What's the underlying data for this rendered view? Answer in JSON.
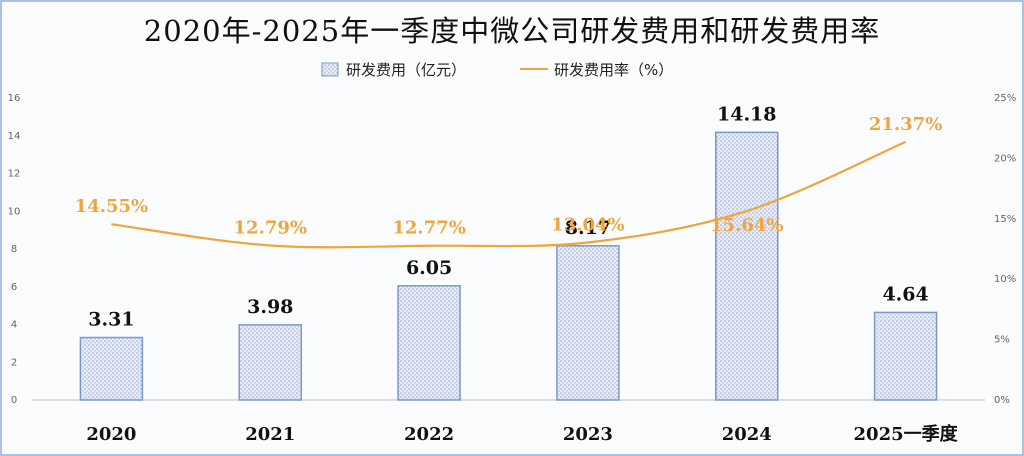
{
  "chart_data": {
    "type": "bar",
    "title": "2020年-2025年一季度中微公司研发费用和研发费用率",
    "categories": [
      "2020",
      "2021",
      "2022",
      "2023",
      "2024",
      "2025一季度"
    ],
    "series": [
      {
        "name": "研发费用（亿元）",
        "type": "bar",
        "axis": "left",
        "values": [
          3.31,
          3.98,
          6.05,
          8.17,
          14.18,
          4.64
        ],
        "labels": [
          "3.31",
          "3.98",
          "6.05",
          "8.17",
          "14.18",
          "4.64"
        ]
      },
      {
        "name": "研发费用率（%）",
        "type": "line",
        "axis": "right",
        "values": [
          14.55,
          12.79,
          12.77,
          13.04,
          15.64,
          21.37
        ],
        "labels": [
          "14.55%",
          "12.79%",
          "12.77%",
          "13.04%",
          "15.64%",
          "21.37%"
        ]
      }
    ],
    "y_left": {
      "range": [
        0,
        16
      ],
      "ticks": [
        "0",
        "2",
        "4",
        "6",
        "8",
        "10",
        "12",
        "14",
        "16"
      ]
    },
    "y_right": {
      "range": [
        0,
        25
      ],
      "ticks": [
        "0%",
        "5%",
        "10%",
        "15%",
        "20%",
        "25%"
      ]
    },
    "legend_position": "top-center",
    "grid": false,
    "colors": {
      "bar_fill": "#dfe6f5",
      "bar_border": "#7f97c9",
      "line": "#f0a53c",
      "frame": "#a9c2e3"
    }
  }
}
